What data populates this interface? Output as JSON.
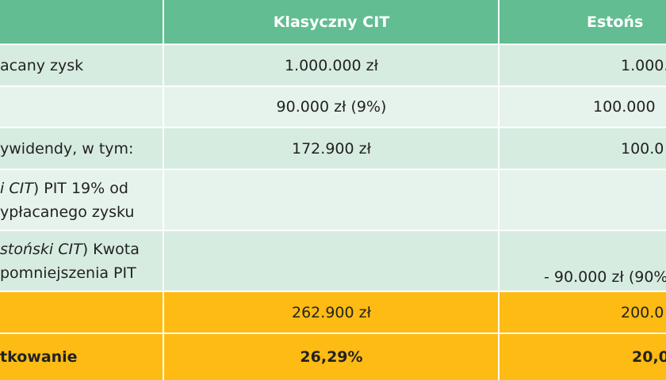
{
  "header": {
    "columns": [
      "Klasyczny CIT",
      "Estońs"
    ]
  },
  "rows": [
    {
      "label": [
        {
          "text": "acany zysk"
        }
      ],
      "classic": "1.000.000 zł",
      "estonian": "1.000."
    },
    {
      "classic": "90.000 zł (9%)",
      "estonian": "100.000"
    },
    {
      "label": [
        {
          "text": "ywidendy, w tym:"
        }
      ],
      "classic": "172.900 zł",
      "estonian": "100.0"
    },
    {
      "label": [
        {
          "italic": "i CIT",
          "text": ") PIT 19% od"
        },
        {
          "text": "ypłacanego zysku"
        }
      ]
    },
    {
      "label": [
        {
          "italic": "stoński CIT",
          "text": ") Kwota"
        },
        {
          "text": "pomniejszenia PIT"
        }
      ],
      "estonian": "- 90.000 zł (90%"
    },
    {
      "classic": "262.900 zł",
      "estonian": "200.0"
    },
    {
      "label": [
        {
          "text": "tkowanie"
        }
      ],
      "classic": "26,29%",
      "estonian": "20,0"
    }
  ]
}
